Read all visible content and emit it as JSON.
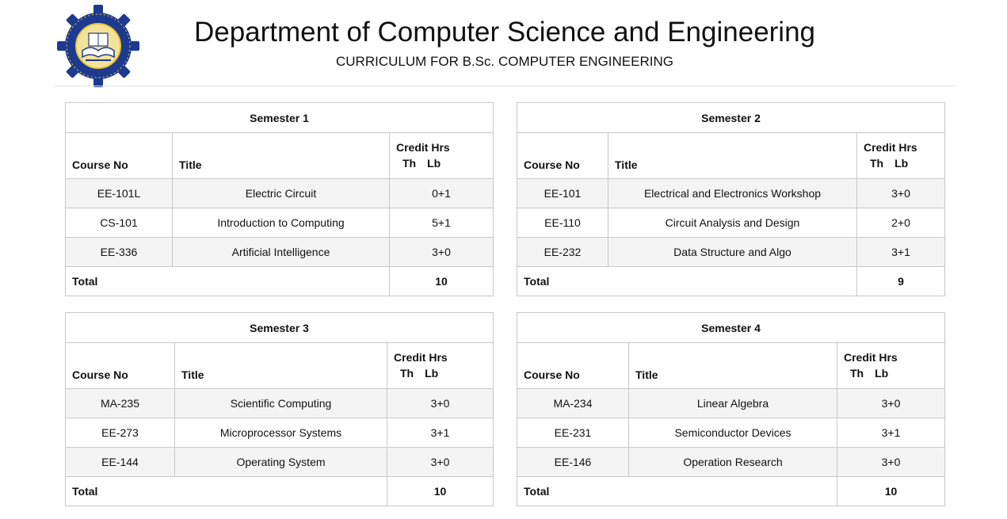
{
  "header": {
    "title": "Department of Computer Science and Engineering",
    "subtitle": "CURRICULUM FOR B.Sc. COMPUTER ENGINEERING"
  },
  "logo": {
    "icon": "university-seal-icon",
    "primary_color": "#1d3a8f",
    "accent_color": "#e9c53a"
  },
  "columns": {
    "course_no": "Course No",
    "title": "Title",
    "credit_hrs": "Credit Hrs",
    "th": "Th",
    "lb": "Lb"
  },
  "total_label": "Total",
  "semesters": [
    {
      "name": "Semester 1",
      "courses": [
        {
          "code": "EE-101L",
          "title": "Electric Circuit",
          "credits": "0+1"
        },
        {
          "code": "CS-101",
          "title": "Introduction to Computing",
          "credits": "5+1"
        },
        {
          "code": "EE-336",
          "title": "Artificial Intelligence",
          "credits": "3+0"
        }
      ],
      "total": "10"
    },
    {
      "name": "Semester 2",
      "courses": [
        {
          "code": "EE-101",
          "title": "Electrical and Electronics Workshop",
          "credits": "3+0"
        },
        {
          "code": "EE-110",
          "title": "Circuit Analysis and Design",
          "credits": "2+0"
        },
        {
          "code": "EE-232",
          "title": "Data Structure and Algo",
          "credits": "3+1"
        }
      ],
      "total": "9"
    },
    {
      "name": "Semester 3",
      "courses": [
        {
          "code": "MA-235",
          "title": "Scientific Computing",
          "credits": "3+0"
        },
        {
          "code": "EE-273",
          "title": "Microprocessor Systems",
          "credits": "3+1"
        },
        {
          "code": "EE-144",
          "title": "Operating System",
          "credits": "3+0"
        }
      ],
      "total": "10"
    },
    {
      "name": "Semester 4",
      "courses": [
        {
          "code": "MA-234",
          "title": "Linear Algebra",
          "credits": "3+0"
        },
        {
          "code": "EE-231",
          "title": "Semiconductor Devices",
          "credits": "3+1"
        },
        {
          "code": "EE-146",
          "title": "Operation Research",
          "credits": "3+0"
        }
      ],
      "total": "10"
    }
  ]
}
